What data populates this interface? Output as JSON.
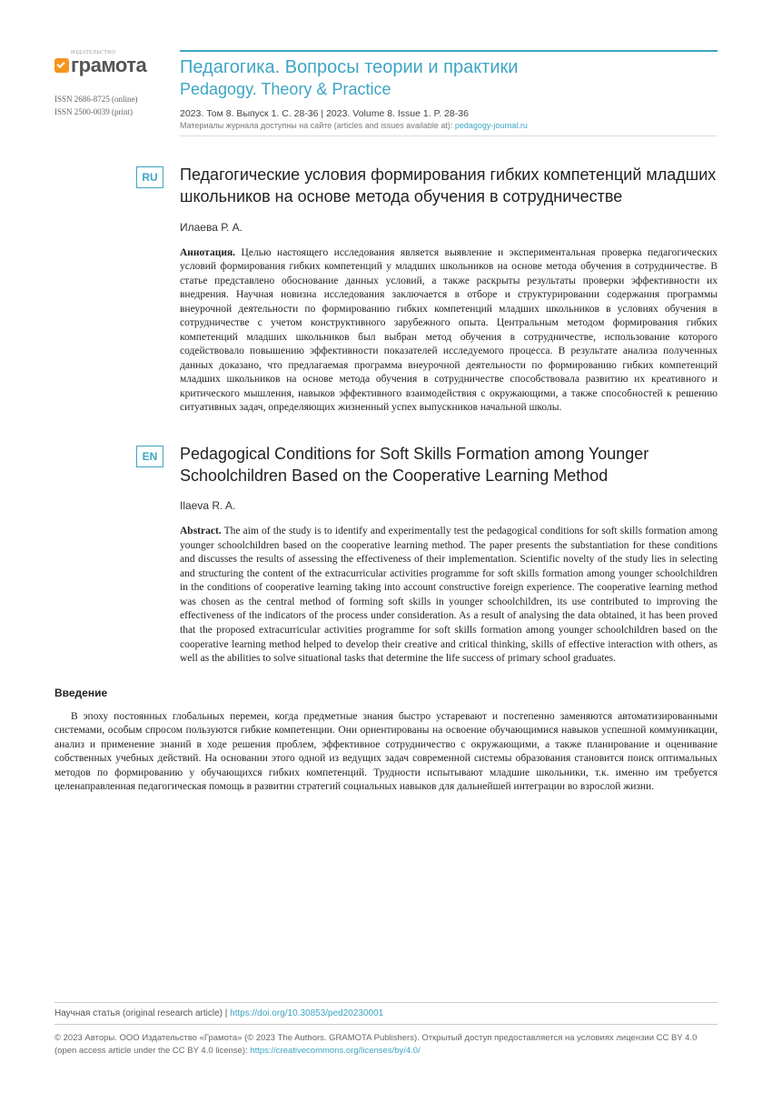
{
  "logo": {
    "publisher_tag": "ИЗДАТЕЛЬСТВО",
    "name": "грамота"
  },
  "issn": {
    "online": "ISSN 2686-8725 (online)",
    "print": "ISSN 2500-0039 (print)"
  },
  "journal": {
    "title_ru": "Педагогика. Вопросы теории и практики",
    "title_en": "Pedagogy. Theory & Practice",
    "volume": "2023. Том 8. Выпуск 1. С. 28-36  |  2023. Volume 8. Issue 1. P. 28-36",
    "availability_prefix": "Материалы журнала доступны на сайте (articles and issues available at): ",
    "availability_link": "pedagogy-journal.ru"
  },
  "ru": {
    "badge": "RU",
    "title": "Педагогические условия формирования гибких компетенций младших школьников на основе метода обучения в сотрудничестве",
    "author": "Илаева Р. А.",
    "abstract_label": "Аннотация.",
    "abstract": " Целью настоящего исследования является выявление и экспериментальная проверка педагогических условий формирования гибких компетенций у младших школьников на основе метода обучения в сотрудничестве. В статье представлено обоснование данных условий, а также раскрыты результаты проверки эффективности их внедрения. Научная новизна исследования заключается в отборе и структурировании содержания программы внеурочной деятельности по формированию гибких компетенций младших школьников в условиях обучения в сотрудничестве с учетом конструктивного зарубежного опыта. Центральным методом формирования гибких компетенций младших школьников был выбран метод обучения в сотрудничестве, использование которого содействовало повышению эффективности показателей исследуемого процесса. В результате анализа полученных данных доказано, что предлагаемая программа внеурочной деятельности по формированию гибких компетенций младших школьников на основе метода обучения в сотрудничестве способствовала развитию их креативного и критического мышления, навыков эффективного взаимодействия с окружающими, а также способностей к решению ситуативных задач, определяющих жизненный успех выпускников начальной школы."
  },
  "en": {
    "badge": "EN",
    "title": "Pedagogical Conditions for Soft Skills Formation among Younger Schoolchildren Based on the Cooperative Learning Method",
    "author": "Ilaeva R. A.",
    "abstract_label": "Abstract.",
    "abstract": " The aim of the study is to identify and experimentally test the pedagogical conditions for soft skills formation among younger schoolchildren based on the cooperative learning method. The paper presents the substantiation for these conditions and discusses the results of assessing the effectiveness of their implementation. Scientific novelty of the study lies in selecting and structuring the content of the extracurricular activities programme for soft skills formation among younger schoolchildren in the conditions of cooperative learning taking into account constructive foreign experience. The cooperative learning method was chosen as the central method of forming soft skills in younger schoolchildren, its use contributed to improving the effectiveness of the indicators of the process under consideration. As a result of analysing the data obtained, it has been proved that the proposed extracurricular activities programme for soft skills formation among younger schoolchildren based on the cooperative learning method helped to develop their creative and critical thinking, skills of effective interaction with others, as well as the abilities to solve situational tasks that determine the life success of primary school graduates."
  },
  "intro": {
    "heading": "Введение",
    "para": "В эпоху постоянных глобальных перемен, когда предметные знания быстро устаревают и постепенно заменяются автоматизированными системами, особым спросом пользуются гибкие компетенции. Они ориентированы на освоение обучающимися навыков успешной коммуникации, анализ и применение знаний в ходе решения проблем, эффективное сотрудничество с окружающими, а также планирование и оценивание собственных учебных действий. На основании этого одной из ведущих задач современной системы образования становится поиск оптимальных методов по формированию у обучающихся гибких компетенций. Трудности испытывают младшие школьники, т.к. именно им требуется целенаправленная педагогическая помощь в развитии стратегий социальных навыков для дальнейшей интеграции во взрослой жизни."
  },
  "footer": {
    "article_type": "Научная статья (original research article)",
    "doi_sep": "  |  ",
    "doi": "https://doi.org/10.30853/ped20230001",
    "copyright": "© 2023 Авторы. ООО Издательство «Грамота» (© 2023 The Authors. GRAMOTA Publishers). Открытый доступ предоставляется на условиях лицензии CC BY 4.0 (open access article under the CC BY 4.0 license): ",
    "cc_link": "https://creativecommons.org/licenses/by/4.0/"
  },
  "colors": {
    "accent": "#3da5c4",
    "orange": "#f7941e",
    "text": "#222222",
    "muted": "#666666",
    "border": "#dddddd"
  }
}
